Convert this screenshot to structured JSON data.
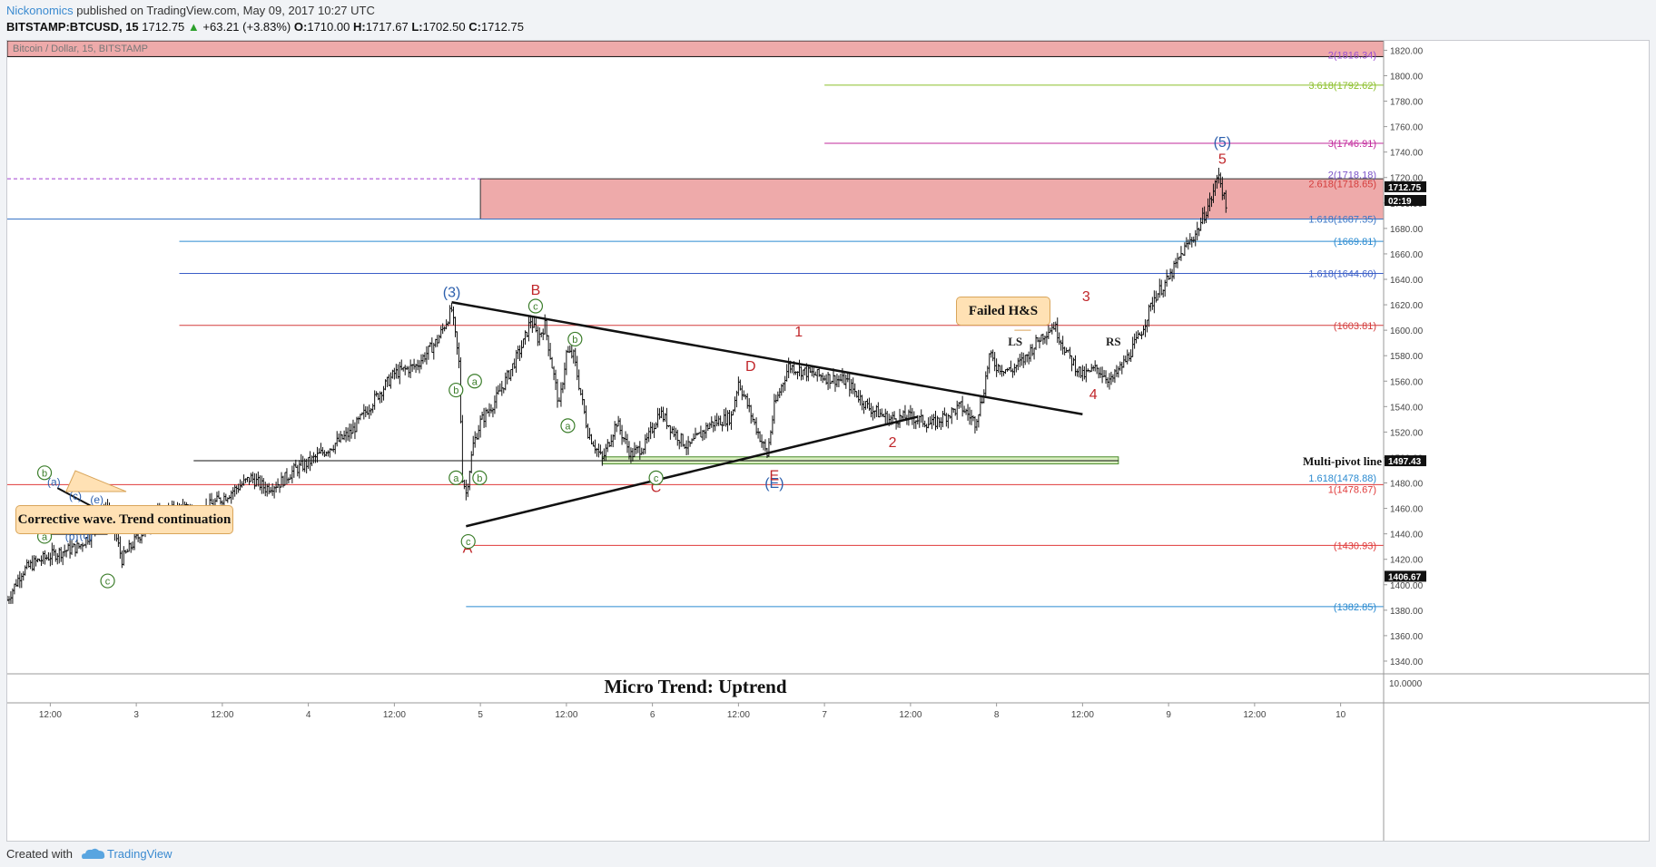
{
  "header": {
    "author": "Nickonomics",
    "published_text": " published on TradingView.com, May 09, 2017 10:27 UTC",
    "symbol_line": "BITSTAMP:BTCUSD, 15",
    "last": "1712.75",
    "change_arrow": "▲",
    "change": "+63.21 (+3.83%)",
    "open_label": "O:",
    "open": "1710.00",
    "high_label": "H:",
    "high": "1717.67",
    "low_label": "L:",
    "low": "1702.50",
    "close_label": "C:",
    "close": "1712.75"
  },
  "footer": {
    "created": "Created with",
    "brand": "TradingView"
  },
  "colors": {
    "bg": "#ffffff",
    "up": "#2ca02c",
    "zone": "#eeaaaa",
    "green_zone": "#d9efc0",
    "wave_blue": "#2c5fad",
    "wave_red": "#c0262a",
    "wave_green": "#3b7d2a",
    "candle": "#111111"
  },
  "chart_data": {
    "type": "candlestick",
    "watermark": "Bitcoin / Dollar, 15, BITSTAMP",
    "bottom_title": "Micro Trend: Uptrend",
    "ylim": [
      1330,
      1826
    ],
    "y_ticks": [
      1340,
      1360,
      1380,
      1400,
      1420,
      1440,
      1460,
      1480,
      1500,
      1520,
      1540,
      1560,
      1580,
      1600,
      1620,
      1640,
      1660,
      1680,
      1700,
      1720,
      1740,
      1760,
      1780,
      1800,
      1820
    ],
    "y_tick_labels": [
      "1340.00",
      "1360.00",
      "1380.00",
      "1400.00",
      "1420.00",
      "1440.00",
      "1460.00",
      "1480.00",
      "1500.00",
      "1520.00",
      "1540.00",
      "1560.00",
      "1580.00",
      "1600.00",
      "1620.00",
      "1640.00",
      "1660.00",
      "1680.00",
      "1700.00",
      "1720.00",
      "1740.00",
      "1760.00",
      "1780.00",
      "1800.00",
      "1820.00"
    ],
    "x_ticks": [
      "12:00",
      "3",
      "12:00",
      "4",
      "12:00",
      "5",
      "12:00",
      "6",
      "12:00",
      "7",
      "12:00",
      "8",
      "12:00",
      "9",
      "12:00",
      "10"
    ],
    "x_tick_hours": [
      12,
      24,
      36,
      48,
      60,
      72,
      84,
      96,
      108,
      120,
      132,
      144,
      156,
      168,
      180,
      192
    ],
    "xlim": [
      6,
      198
    ],
    "price_path": [
      [
        6,
        1388
      ],
      [
        8,
        1410
      ],
      [
        10,
        1418
      ],
      [
        13,
        1425
      ],
      [
        16,
        1430
      ],
      [
        18,
        1442
      ],
      [
        20,
        1462
      ],
      [
        22,
        1420
      ],
      [
        24,
        1436
      ],
      [
        27,
        1455
      ],
      [
        30,
        1460
      ],
      [
        33,
        1458
      ],
      [
        36,
        1468
      ],
      [
        40,
        1484
      ],
      [
        42,
        1476
      ],
      [
        44,
        1480
      ],
      [
        46,
        1490
      ],
      [
        48,
        1496
      ],
      [
        51,
        1508
      ],
      [
        54,
        1520
      ],
      [
        57,
        1544
      ],
      [
        60,
        1566
      ],
      [
        63,
        1572
      ],
      [
        66,
        1592
      ],
      [
        68,
        1616
      ],
      [
        69,
        1574
      ],
      [
        69.5,
        1485
      ],
      [
        70,
        1472
      ],
      [
        71,
        1510
      ],
      [
        72,
        1528
      ],
      [
        74,
        1544
      ],
      [
        76,
        1566
      ],
      [
        78,
        1590
      ],
      [
        79,
        1608
      ],
      [
        80,
        1594
      ],
      [
        81,
        1604
      ],
      [
        83,
        1540
      ],
      [
        84,
        1582
      ],
      [
        85,
        1580
      ],
      [
        87,
        1520
      ],
      [
        89,
        1498
      ],
      [
        91,
        1528
      ],
      [
        93,
        1502
      ],
      [
        95,
        1510
      ],
      [
        97,
        1536
      ],
      [
        99,
        1520
      ],
      [
        101,
        1508
      ],
      [
        104,
        1526
      ],
      [
        107,
        1532
      ],
      [
        108,
        1560
      ],
      [
        110,
        1530
      ],
      [
        112,
        1502
      ],
      [
        113,
        1540
      ],
      [
        115,
        1572
      ],
      [
        118,
        1566
      ],
      [
        121,
        1562
      ],
      [
        123,
        1560
      ],
      [
        126,
        1540
      ],
      [
        129,
        1530
      ],
      [
        132,
        1532
      ],
      [
        135,
        1526
      ],
      [
        139,
        1540
      ],
      [
        141,
        1528
      ],
      [
        142,
        1546
      ],
      [
        143,
        1580
      ],
      [
        144,
        1572
      ],
      [
        146,
        1568
      ],
      [
        148,
        1578
      ],
      [
        150,
        1594
      ],
      [
        152,
        1604
      ],
      [
        154,
        1580
      ],
      [
        156,
        1564
      ],
      [
        158,
        1570
      ],
      [
        160,
        1560
      ],
      [
        162,
        1576
      ],
      [
        164,
        1596
      ],
      [
        166,
        1626
      ],
      [
        168,
        1640
      ],
      [
        170,
        1662
      ],
      [
        172,
        1678
      ],
      [
        174,
        1704
      ],
      [
        175,
        1724
      ],
      [
        176,
        1696
      ]
    ],
    "levels": [
      {
        "label": "2(1816.34)",
        "value": 1816.34,
        "color": "#9b4fd0",
        "x_from": null
      },
      {
        "label": "3.618(1792.62)",
        "value": 1792.62,
        "color": "#8bbf2a",
        "x_from": 120
      },
      {
        "label": "3(1746.91)",
        "value": 1746.91,
        "color": "#c2289b",
        "x_from": 120
      },
      {
        "label": "2(1718.18)",
        "value": 1718.18,
        "color": "#7a52c7",
        "x_from": null
      },
      {
        "label": "2.618(1718.65)",
        "value": 1718.65,
        "color": "#d43c3c",
        "x_from": null
      },
      {
        "label": "1.618(1687.35)",
        "value": 1687.35,
        "color": "#3a76c7",
        "x_from": 6
      },
      {
        "label": "(1669.81)",
        "value": 1669.81,
        "color": "#2a8ad0",
        "x_from": 30
      },
      {
        "label": "1.618(1644.60)",
        "value": 1644.6,
        "color": "#3a5ec7",
        "x_from": 30
      },
      {
        "label": "(1603.81)",
        "value": 1603.81,
        "color": "#d43c3c",
        "x_from": 30
      },
      {
        "label": "1.618(1478.88)",
        "value": 1478.88,
        "color": "#2a8ad0",
        "x_from": null
      },
      {
        "label": "1(1478.67)",
        "value": 1478.67,
        "color": "#e03a3a",
        "x_from": 6
      },
      {
        "label": "(1430.93)",
        "value": 1430.93,
        "color": "#e03a3a",
        "x_from": 70
      },
      {
        "label": "(1382.85)",
        "value": 1382.85,
        "color": "#2a8ad0",
        "x_from": 70
      }
    ],
    "price_badges": [
      {
        "label": "1712.75",
        "value": 1712.75
      },
      {
        "label": "02:19",
        "value": 1702
      },
      {
        "label": "1497.43",
        "value": 1497.43
      },
      {
        "label": "1406.67",
        "value": 1406.67
      }
    ],
    "annotations": {
      "callouts": [
        "Corrective wave. Trend continuation",
        "Failed H&S"
      ],
      "multi_pivot": "Multi-pivot line",
      "blue_waves": [
        "(3)",
        "(5)",
        "(E)",
        "(a)",
        "(b)",
        "(c)",
        "(d)",
        "(e)"
      ],
      "red_waves": [
        "A",
        "B",
        "C",
        "D",
        "E",
        "1",
        "2",
        "3",
        "4",
        "5"
      ],
      "green_waves": [
        "a",
        "b",
        "c",
        "a",
        "b",
        "a",
        "b",
        "c",
        "b",
        "a",
        "c"
      ],
      "pattern": [
        "LS",
        "RS"
      ]
    }
  }
}
